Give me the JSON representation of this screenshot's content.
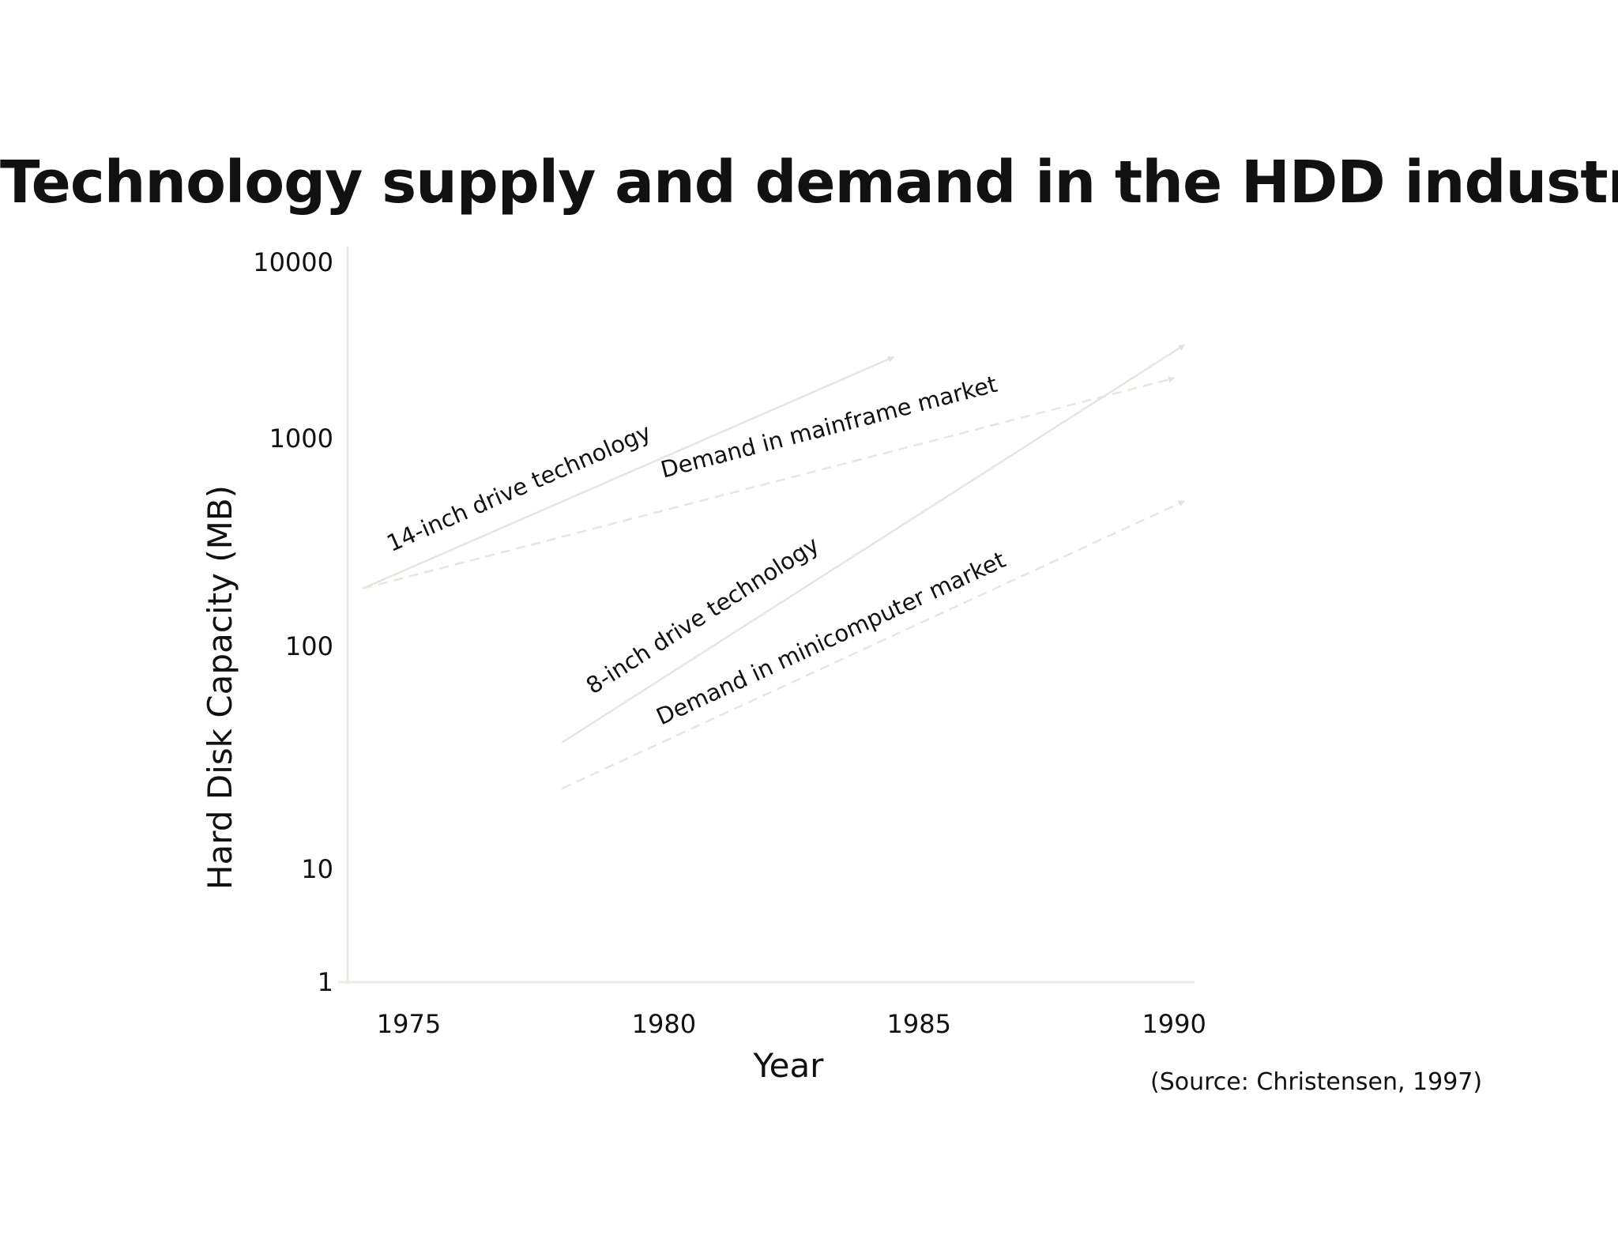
{
  "chart_data": {
    "type": "line",
    "title": "Technology supply and demand in the HDD industry",
    "xlabel": "Year",
    "ylabel": "Hard Disk Capacity (MB)",
    "y_scale": "log",
    "xlim": [
      1973.8,
      1990.4
    ],
    "ylim": [
      1,
      10000
    ],
    "x_ticks": [
      1975,
      1980,
      1985,
      1990
    ],
    "y_ticks": [
      1,
      10,
      100,
      1000,
      10000
    ],
    "x_tick_labels": [
      "1975",
      "1980",
      "1985",
      "1990"
    ],
    "y_tick_labels": [
      "1",
      "10",
      "100",
      "1000",
      "10000"
    ],
    "grid": false,
    "legend": "none",
    "series": [
      {
        "name": "14-inch drive technology",
        "kind": "technology",
        "style": "solid",
        "x": [
          1974.1,
          1984.5
        ],
        "y": [
          190,
          2900
        ]
      },
      {
        "name": "Demand in mainframe market",
        "kind": "demand",
        "style": "dashed",
        "x": [
          1974.1,
          1990
        ],
        "y": [
          190,
          2200
        ]
      },
      {
        "name": "8-inch drive technology",
        "kind": "technology",
        "style": "solid",
        "x": [
          1978,
          1990.2
        ],
        "y": [
          37,
          3400
        ]
      },
      {
        "name": "Demand in minicomputer market",
        "kind": "demand",
        "style": "dashed",
        "x": [
          1978,
          1990.2
        ],
        "y": [
          23,
          500
        ]
      }
    ],
    "annotations": [
      "(Source: Christensen, 1997)"
    ],
    "colors": {
      "line": "#e6e6de",
      "axis": "#ecebe3",
      "text": "#111111"
    }
  }
}
